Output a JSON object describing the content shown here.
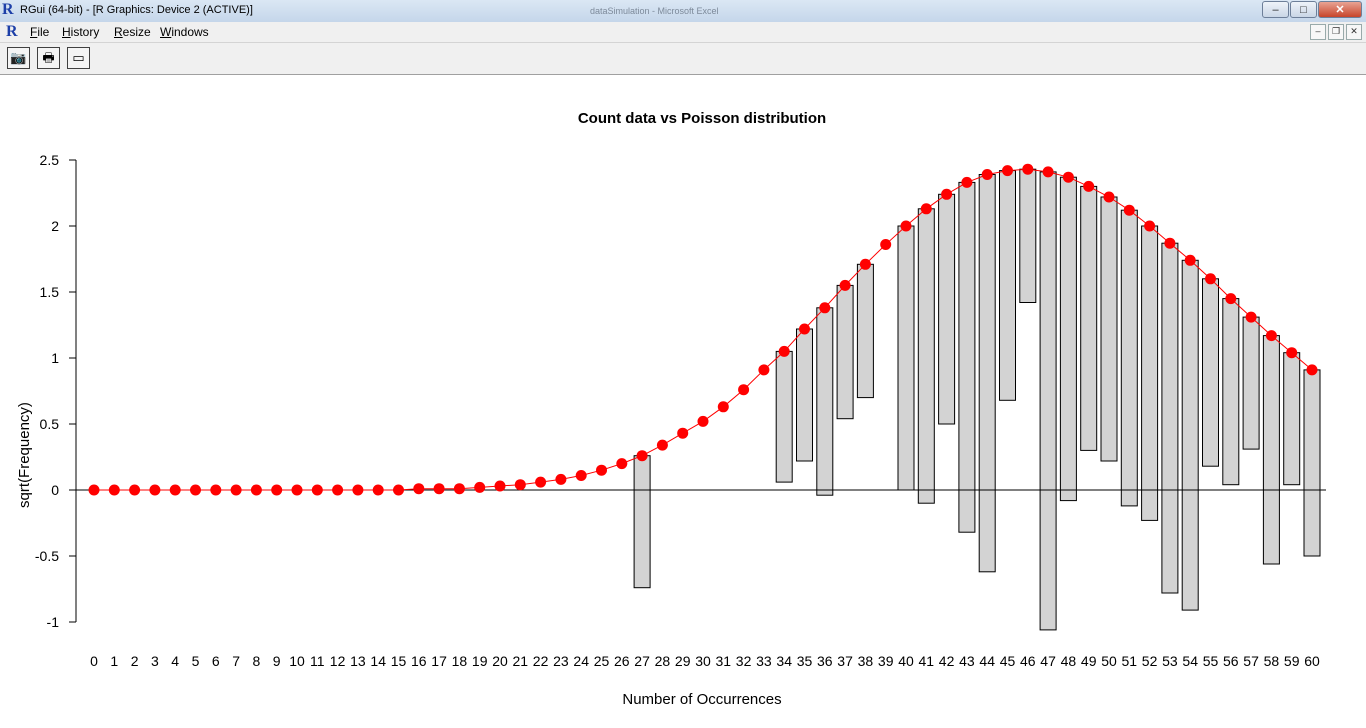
{
  "window": {
    "title": "RGui (64-bit) - [R Graphics: Device 2 (ACTIVE)]",
    "background_title": "dataSimulation - Microsoft Excel",
    "app_icon": "R",
    "controls": {
      "minimize": "–",
      "maximize": "□",
      "close": "✕"
    }
  },
  "menu": {
    "items": [
      {
        "first": "F",
        "rest": "ile"
      },
      {
        "first": "H",
        "rest": "istory"
      },
      {
        "first": "R",
        "rest": "esize"
      },
      {
        "first": "W",
        "rest": "indows"
      }
    ],
    "mdi_controls": {
      "minimize": "–",
      "restore": "❐",
      "close": "✕"
    }
  },
  "toolbar": {
    "buttons": [
      {
        "name": "copy-to-clipboard-button",
        "icon": "camera-icon",
        "glyph": "📷"
      },
      {
        "name": "print-button",
        "icon": "printer-icon",
        "glyph": "🖶"
      },
      {
        "name": "console-button",
        "icon": "window-icon",
        "glyph": "▭"
      }
    ]
  },
  "chart_data": {
    "type": "bar",
    "title": "Count data vs Poisson distribution",
    "xlabel": "Number of Occurrences",
    "ylabel": "sqrt(Frequency)",
    "ylim": [
      -1,
      2.5
    ],
    "yticks": [
      "-1",
      "-0.5",
      "0",
      "0.5",
      "1",
      "1.5",
      "2",
      "2.5"
    ],
    "yticks_values": [
      -1,
      -0.5,
      0,
      0.5,
      1,
      1.5,
      2,
      2.5
    ],
    "categories": [
      "0",
      "1",
      "2",
      "3",
      "4",
      "5",
      "6",
      "7",
      "8",
      "9",
      "10",
      "11",
      "12",
      "13",
      "14",
      "15",
      "16",
      "17",
      "18",
      "19",
      "20",
      "21",
      "22",
      "23",
      "24",
      "25",
      "26",
      "27",
      "28",
      "29",
      "30",
      "31",
      "32",
      "33",
      "34",
      "35",
      "36",
      "37",
      "38",
      "39",
      "40",
      "41",
      "42",
      "43",
      "44",
      "45",
      "46",
      "47",
      "48",
      "49",
      "50",
      "51",
      "52",
      "53",
      "54",
      "55",
      "56",
      "57",
      "58",
      "59",
      "60"
    ],
    "expected_sqrt": [
      0,
      0,
      0,
      0,
      0,
      0,
      0,
      0,
      0,
      0,
      0,
      0,
      0,
      0,
      0,
      0,
      0.01,
      0.01,
      0.01,
      0.02,
      0.03,
      0.04,
      0.06,
      0.08,
      0.11,
      0.15,
      0.2,
      0.26,
      0.34,
      0.43,
      0.52,
      0.63,
      0.76,
      0.91,
      1.05,
      1.22,
      1.38,
      1.55,
      1.71,
      1.86,
      2.0,
      2.13,
      2.24,
      2.33,
      2.39,
      2.42,
      2.43,
      2.41,
      2.37,
      2.3,
      2.22,
      2.12,
      2.0,
      1.87,
      1.74,
      1.6,
      1.45,
      1.31,
      1.17,
      1.04,
      0.91
    ],
    "bars_top": [
      null,
      null,
      null,
      null,
      null,
      null,
      null,
      null,
      null,
      null,
      null,
      null,
      null,
      null,
      null,
      null,
      null,
      null,
      null,
      null,
      null,
      null,
      null,
      null,
      null,
      null,
      null,
      0.26,
      null,
      null,
      null,
      null,
      null,
      null,
      1.05,
      1.22,
      1.38,
      1.55,
      1.71,
      null,
      2.0,
      2.13,
      2.24,
      2.33,
      2.39,
      2.42,
      2.43,
      2.41,
      2.37,
      2.3,
      2.22,
      2.12,
      2.0,
      1.87,
      1.74,
      1.6,
      1.45,
      1.31,
      1.17,
      1.04,
      0.91
    ],
    "bars_bottom": [
      null,
      null,
      null,
      null,
      null,
      null,
      null,
      null,
      null,
      null,
      null,
      null,
      null,
      null,
      null,
      null,
      null,
      null,
      null,
      null,
      null,
      null,
      null,
      null,
      null,
      null,
      null,
      -0.74,
      null,
      null,
      null,
      null,
      null,
      null,
      0.06,
      0.22,
      -0.04,
      0.54,
      0.7,
      null,
      0.0,
      -0.1,
      0.5,
      -0.32,
      -0.62,
      0.68,
      1.42,
      -1.06,
      -0.08,
      0.3,
      0.22,
      -0.12,
      -0.23,
      -0.78,
      -0.91,
      0.18,
      0.04,
      0.31,
      -0.56,
      0.04,
      -0.5
    ],
    "series": [
      {
        "name": "",
        "kind": "hanging-bars",
        "color": "#d3d3d3"
      },
      {
        "name": "",
        "kind": "line-points",
        "color": "#ff0000"
      }
    ],
    "grid": false,
    "legend": "none"
  }
}
